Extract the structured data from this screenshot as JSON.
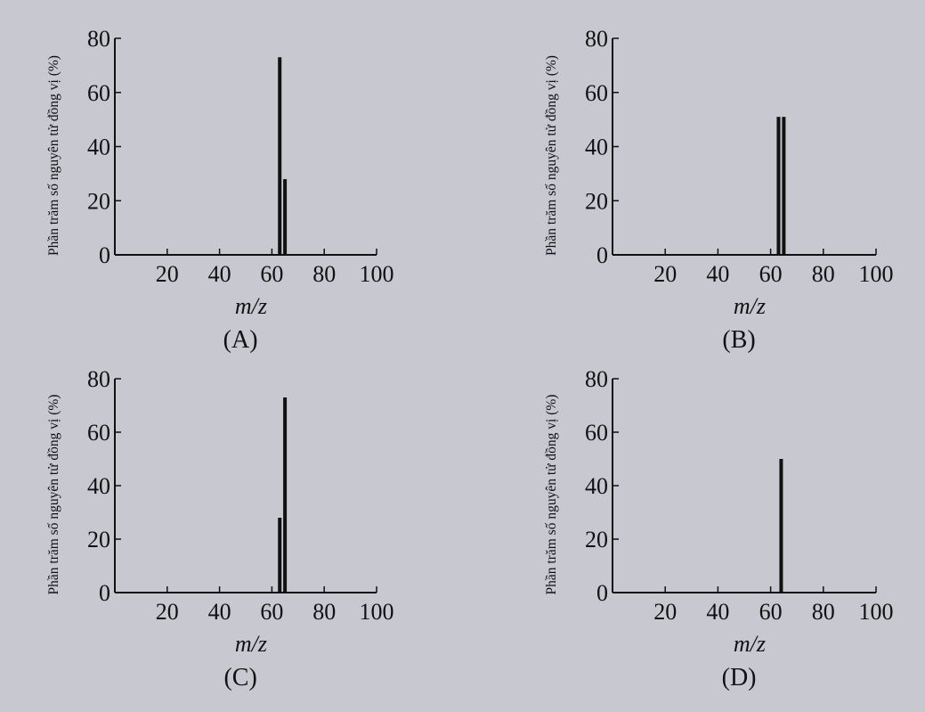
{
  "chart_data": [
    {
      "type": "bar",
      "panel_label": "(A)",
      "xlabel": "m/z",
      "ylabel": "Phần trăm số nguyên tử đồng vị (%)",
      "xlim": [
        0,
        100
      ],
      "ylim": [
        0,
        80
      ],
      "xticks": [
        20,
        40,
        60,
        80,
        100
      ],
      "yticks": [
        0,
        20,
        40,
        60,
        80
      ],
      "bars": [
        {
          "x": 63,
          "y": 73
        },
        {
          "x": 65,
          "y": 28
        }
      ]
    },
    {
      "type": "bar",
      "panel_label": "(B)",
      "xlabel": "m/z",
      "ylabel": "Phần trăm số nguyên tử đồng vị (%)",
      "xlim": [
        0,
        100
      ],
      "ylim": [
        0,
        80
      ],
      "xticks": [
        20,
        40,
        60,
        80,
        100
      ],
      "yticks": [
        0,
        20,
        40,
        60,
        80
      ],
      "bars": [
        {
          "x": 63,
          "y": 51
        },
        {
          "x": 65,
          "y": 51
        }
      ]
    },
    {
      "type": "bar",
      "panel_label": "(C)",
      "xlabel": "m/z",
      "ylabel": "Phần trăm số nguyên tử đồng vị (%)",
      "xlim": [
        0,
        100
      ],
      "ylim": [
        0,
        80
      ],
      "xticks": [
        20,
        40,
        60,
        80,
        100
      ],
      "yticks": [
        0,
        20,
        40,
        60,
        80
      ],
      "bars": [
        {
          "x": 63,
          "y": 28
        },
        {
          "x": 65,
          "y": 73
        }
      ]
    },
    {
      "type": "bar",
      "panel_label": "(D)",
      "xlabel": "m/z",
      "ylabel": "Phần trăm số nguyên tử đồng vị (%)",
      "xlim": [
        0,
        100
      ],
      "ylim": [
        0,
        80
      ],
      "xticks": [
        20,
        40,
        60,
        80,
        100
      ],
      "yticks": [
        0,
        20,
        40,
        60,
        80
      ],
      "bars": [
        {
          "x": 64,
          "y": 50
        }
      ]
    }
  ]
}
